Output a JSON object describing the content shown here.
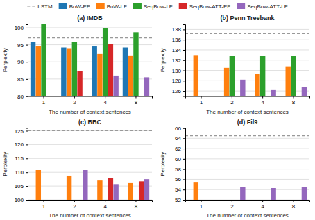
{
  "chart_data": [
    {
      "type": "bar",
      "title": "(a) IMDB",
      "xlabel": "The number of context sentences",
      "ylabel": "Perplexity",
      "categories": [
        "1",
        "2",
        "4",
        "8"
      ],
      "ylim": [
        80,
        101
      ],
      "yticks": [
        80,
        85,
        90,
        95,
        100
      ],
      "grid": true,
      "legend": "top",
      "reference_line": {
        "name": "LSTM",
        "value": 97.0,
        "line_style": "dashed"
      },
      "series": [
        {
          "name": "BoW-EF",
          "values": [
            95.8,
            94.2,
            94.5,
            94.2
          ]
        },
        {
          "name": "BoW-LF",
          "values": [
            94.7,
            94.0,
            92.3,
            91.9
          ]
        },
        {
          "name": "SeqBow-LF",
          "values": [
            101.0,
            95.8,
            99.8,
            98.7
          ]
        },
        {
          "name": "SeqBow-ATT-EF",
          "values": [
            null,
            87.3,
            95.3,
            null
          ]
        },
        {
          "name": "SeqBow-ATT-LF",
          "values": [
            null,
            null,
            86.0,
            85.5
          ]
        }
      ]
    },
    {
      "type": "bar",
      "title": "(b) Penn Treebank",
      "xlabel": "The number of context sentences",
      "ylabel": "Perplexity",
      "categories": [
        "1",
        "2",
        "4",
        "8"
      ],
      "ylim": [
        125,
        139
      ],
      "yticks": [
        126,
        128,
        130,
        132,
        134,
        136,
        138
      ],
      "grid": true,
      "reference_line": {
        "name": "LSTM",
        "value": 137.2,
        "line_style": "dashed"
      },
      "series": [
        {
          "name": "BoW-EF",
          "values": [
            null,
            null,
            null,
            null
          ]
        },
        {
          "name": "BoW-LF",
          "values": [
            133.0,
            130.5,
            129.3,
            130.8
          ]
        },
        {
          "name": "SeqBow-LF",
          "values": [
            null,
            132.8,
            132.8,
            132.8
          ]
        },
        {
          "name": "SeqBow-ATT-EF",
          "values": [
            null,
            null,
            null,
            null
          ]
        },
        {
          "name": "SeqBow-ATT-LF",
          "values": [
            null,
            128.2,
            126.3,
            126.8
          ]
        }
      ]
    },
    {
      "type": "bar",
      "title": "(c) BBC",
      "xlabel": "The number of context sentences",
      "ylabel": "Perplexity",
      "categories": [
        "1",
        "2",
        "4",
        "8"
      ],
      "ylim": [
        100,
        126
      ],
      "yticks": [
        100,
        105,
        110,
        115,
        120,
        125
      ],
      "grid": true,
      "reference_line": {
        "name": "LSTM",
        "value": 125.0,
        "line_style": "dashed"
      },
      "series": [
        {
          "name": "BoW-EF",
          "values": [
            null,
            null,
            null,
            null
          ]
        },
        {
          "name": "BoW-LF",
          "values": [
            110.8,
            108.8,
            107.0,
            106.3
          ]
        },
        {
          "name": "SeqBow-LF",
          "values": [
            null,
            null,
            null,
            null
          ]
        },
        {
          "name": "SeqBow-ATT-EF",
          "values": [
            null,
            null,
            108.0,
            106.7
          ]
        },
        {
          "name": "SeqBow-ATT-LF",
          "values": [
            null,
            110.8,
            105.7,
            107.5
          ]
        }
      ]
    },
    {
      "type": "bar",
      "title": "(d) Fil9",
      "xlabel": "The number of context sentences",
      "ylabel": "Perplexity",
      "categories": [
        "1",
        "2",
        "4",
        "8"
      ],
      "ylim": [
        52,
        66
      ],
      "yticks": [
        52,
        54,
        56,
        58,
        60,
        62,
        64,
        66
      ],
      "grid": true,
      "reference_line": {
        "name": "LSTM",
        "value": 64.5,
        "line_style": "dashed"
      },
      "series": [
        {
          "name": "BoW-EF",
          "values": [
            null,
            null,
            null,
            null
          ]
        },
        {
          "name": "BoW-LF",
          "values": [
            55.5,
            null,
            null,
            null
          ]
        },
        {
          "name": "SeqBow-LF",
          "values": [
            null,
            null,
            null,
            null
          ]
        },
        {
          "name": "SeqBow-ATT-EF",
          "values": [
            null,
            null,
            null,
            null
          ]
        },
        {
          "name": "SeqBow-ATT-LF",
          "values": [
            null,
            54.5,
            54.3,
            54.5
          ]
        }
      ]
    }
  ]
}
